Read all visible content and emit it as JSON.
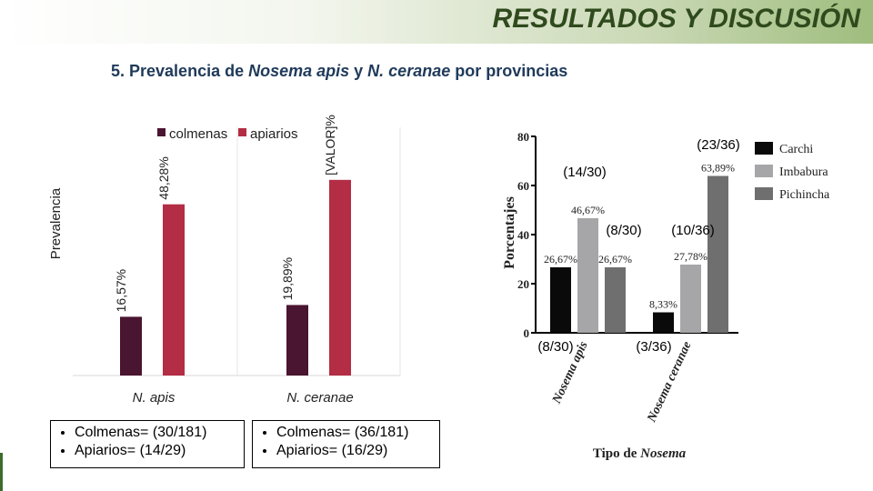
{
  "header": {
    "title": "RESULTADOS Y DISCUSIÓN",
    "subtitle_prefix": "5. Prevalencia de ",
    "subtitle_species1": "Nosema apis",
    "subtitle_mid": " y ",
    "subtitle_species2": "N. ceranae",
    "subtitle_suffix": " por provincias"
  },
  "chart_data": [
    {
      "type": "bar",
      "ylabel": "Prevalencia",
      "categories": [
        "N. apis",
        "N. ceranae"
      ],
      "series": [
        {
          "name": "colmenas",
          "color": "#4a1530",
          "values": [
            16.57,
            19.89
          ]
        },
        {
          "name": "apiarios",
          "color": "#b32d45",
          "values": [
            48.28,
            55.17
          ]
        }
      ],
      "data_labels": [
        [
          "16,57%",
          "48,28%"
        ],
        [
          "19,89%",
          "[VALOR]%"
        ]
      ],
      "ylim": [
        0,
        70
      ],
      "legend_position": "top",
      "grid": false
    },
    {
      "type": "bar",
      "ylabel": "Porcentajes",
      "xlabel": "Tipo de Nosema",
      "xlabel_prefix": "Tipo de ",
      "xlabel_italic": "Nosema",
      "categories": [
        "Nosema apis",
        "Nosema ceranae"
      ],
      "series": [
        {
          "name": "Carchi",
          "color": "#0a0a0a",
          "values": [
            26.67,
            8.33
          ]
        },
        {
          "name": "Imbabura",
          "color": "#a6a6a8",
          "values": [
            46.67,
            27.78
          ]
        },
        {
          "name": "Pichincha",
          "color": "#6f6f6f",
          "values": [
            26.67,
            63.89
          ]
        }
      ],
      "data_labels": [
        [
          "26,67%",
          "46,67%",
          "26,67%"
        ],
        [
          "8,33%",
          "27,78%",
          "63,89%"
        ]
      ],
      "yticks": [
        0,
        20,
        40,
        60,
        80
      ],
      "ylim": [
        0,
        80
      ],
      "legend_position": "right",
      "grid": false,
      "annotations": [
        "(23/36)",
        "(14/30)",
        "(8/30)",
        "(10/36)",
        "(8/30)",
        "(3/36)"
      ]
    }
  ],
  "notes": {
    "apis": [
      "Colmenas= (30/181)",
      "Apiarios= (14/29)"
    ],
    "ceranae": [
      "Colmenas= (36/181)",
      "Apiarios= (16/29)"
    ]
  }
}
